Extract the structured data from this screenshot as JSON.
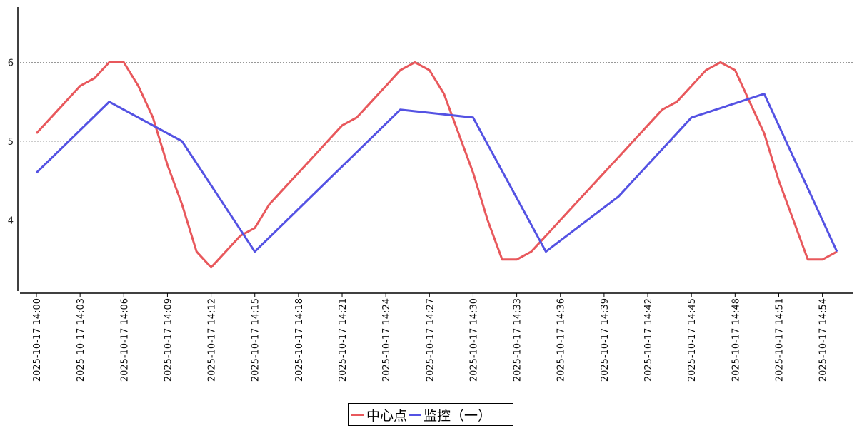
{
  "chart_data": {
    "type": "line",
    "x": [
      "2025-10-17 14:00",
      "2025-10-17 14:01",
      "2025-10-17 14:02",
      "2025-10-17 14:03",
      "2025-10-17 14:04",
      "2025-10-17 14:05",
      "2025-10-17 14:06",
      "2025-10-17 14:07",
      "2025-10-17 14:08",
      "2025-10-17 14:09",
      "2025-10-17 14:10",
      "2025-10-17 14:11",
      "2025-10-17 14:12",
      "2025-10-17 14:13",
      "2025-10-17 14:14",
      "2025-10-17 14:15",
      "2025-10-17 14:16",
      "2025-10-17 14:17",
      "2025-10-17 14:18",
      "2025-10-17 14:19",
      "2025-10-17 14:20",
      "2025-10-17 14:21",
      "2025-10-17 14:22",
      "2025-10-17 14:23",
      "2025-10-17 14:24",
      "2025-10-17 14:25",
      "2025-10-17 14:26",
      "2025-10-17 14:27",
      "2025-10-17 14:28",
      "2025-10-17 14:29",
      "2025-10-17 14:30",
      "2025-10-17 14:31",
      "2025-10-17 14:32",
      "2025-10-17 14:33",
      "2025-10-17 14:34",
      "2025-10-17 14:35",
      "2025-10-17 14:36",
      "2025-10-17 14:37",
      "2025-10-17 14:38",
      "2025-10-17 14:39",
      "2025-10-17 14:40",
      "2025-10-17 14:41",
      "2025-10-17 14:42",
      "2025-10-17 14:43",
      "2025-10-17 14:44",
      "2025-10-17 14:45",
      "2025-10-17 14:46",
      "2025-10-17 14:47",
      "2025-10-17 14:48",
      "2025-10-17 14:49",
      "2025-10-17 14:50",
      "2025-10-17 14:51",
      "2025-10-17 14:52",
      "2025-10-17 14:53",
      "2025-10-17 14:54",
      "2025-10-17 14:55"
    ],
    "x_tick_labels": [
      "2025-10-17 14:00",
      "2025-10-17 14:03",
      "2025-10-17 14:06",
      "2025-10-17 14:09",
      "2025-10-17 14:12",
      "2025-10-17 14:15",
      "2025-10-17 14:18",
      "2025-10-17 14:21",
      "2025-10-17 14:24",
      "2025-10-17 14:27",
      "2025-10-17 14:30",
      "2025-10-17 14:33",
      "2025-10-17 14:36",
      "2025-10-17 14:39",
      "2025-10-17 14:42",
      "2025-10-17 14:45",
      "2025-10-17 14:48",
      "2025-10-17 14:51",
      "2025-10-17 14:54"
    ],
    "y_ticks": [
      4,
      5,
      6
    ],
    "ylim": [
      3.1,
      6.7
    ],
    "grid": "horizontal-dotted",
    "legend": "bottom-center",
    "series": [
      {
        "name": "中心点",
        "color": "#e8585c",
        "values": [
          5.1,
          5.3,
          5.5,
          5.7,
          5.8,
          6.0,
          6.0,
          5.7,
          5.3,
          4.7,
          4.2,
          3.6,
          3.4,
          3.6,
          3.8,
          3.9,
          4.2,
          4.4,
          4.6,
          4.8,
          5.0,
          5.2,
          5.3,
          5.5,
          5.7,
          5.9,
          6.0,
          5.9,
          5.6,
          5.1,
          4.6,
          4.0,
          3.5,
          3.5,
          3.6,
          3.8,
          4.0,
          4.2,
          4.4,
          4.6,
          4.8,
          5.0,
          5.2,
          5.4,
          5.5,
          5.7,
          5.9,
          6.0,
          5.9,
          5.5,
          5.1,
          4.5,
          4.0,
          3.5,
          3.5,
          3.6
        ]
      },
      {
        "name": "监控（一）",
        "color": "#5452e3",
        "points": [
          [
            "2025-10-17 14:00",
            4.6
          ],
          [
            "2025-10-17 14:05",
            5.5
          ],
          [
            "2025-10-17 14:10",
            5.0
          ],
          [
            "2025-10-17 14:15",
            3.6
          ],
          [
            "2025-10-17 14:25",
            5.4
          ],
          [
            "2025-10-17 14:30",
            5.3
          ],
          [
            "2025-10-17 14:35",
            3.6
          ],
          [
            "2025-10-17 14:40",
            4.3
          ],
          [
            "2025-10-17 14:45",
            5.3
          ],
          [
            "2025-10-17 14:50",
            5.6
          ],
          [
            "2025-10-17 14:55",
            3.6
          ]
        ]
      }
    ]
  }
}
